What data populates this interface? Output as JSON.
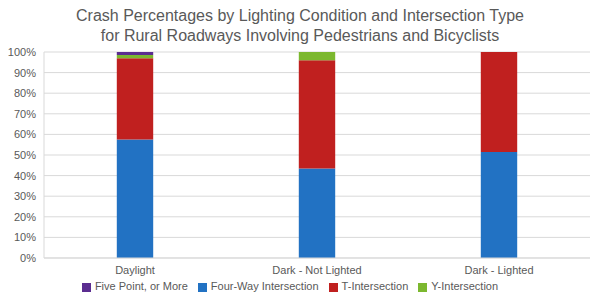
{
  "chart_data": {
    "type": "bar",
    "title": "Crash Percentages by Lighting Condition and Intersection Type\nfor Rural Roadways Involving Pedestrians and Bicyclists",
    "categories": [
      "Daylight",
      "Dark - Not Lighted",
      "Dark - Lighted"
    ],
    "series": [
      {
        "name": "Four-Way Intersection",
        "color": "#2272c3",
        "values": [
          57.5,
          43.5,
          51.5
        ]
      },
      {
        "name": "T-Intersection",
        "color": "#c0201f",
        "values": [
          39.5,
          52.5,
          48.5
        ]
      },
      {
        "name": "Y-Intersection",
        "color": "#7cb82f",
        "values": [
          1.5,
          4,
          0
        ]
      },
      {
        "name": "Five Point, or More",
        "color": "#5b2d90",
        "values": [
          1.5,
          0,
          0
        ]
      }
    ],
    "stacked": true,
    "ylim": [
      0,
      100
    ],
    "yticks": [
      {
        "value": 0,
        "label": "0%"
      },
      {
        "value": 10,
        "label": "10%"
      },
      {
        "value": 20,
        "label": "20%"
      },
      {
        "value": 30,
        "label": "30%"
      },
      {
        "value": 40,
        "label": "40%"
      },
      {
        "value": 50,
        "label": "50%"
      },
      {
        "value": 60,
        "label": "60%"
      },
      {
        "value": 70,
        "label": "70%"
      },
      {
        "value": 80,
        "label": "80%"
      },
      {
        "value": 90,
        "label": "90%"
      },
      {
        "value": 100,
        "label": "100%"
      }
    ],
    "grid": true,
    "legend": "bottom"
  }
}
